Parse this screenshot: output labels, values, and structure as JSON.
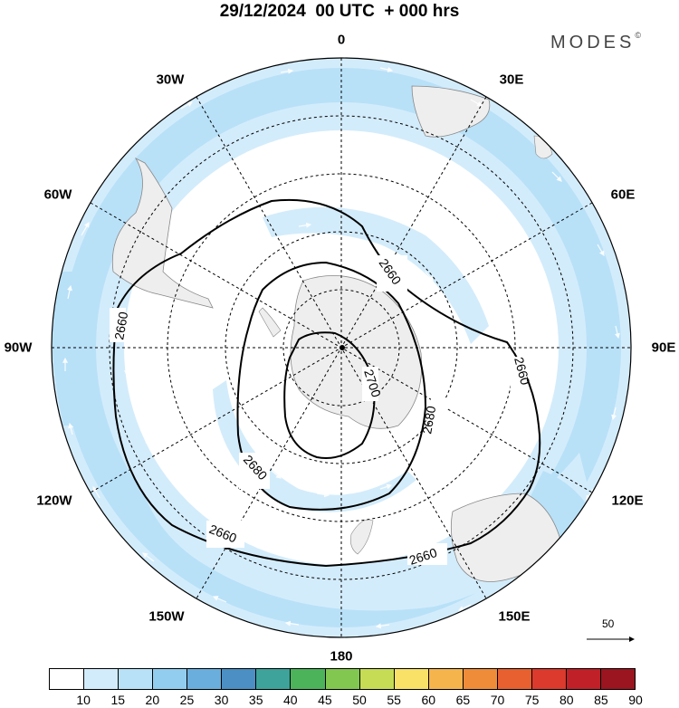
{
  "title": "29/12/2024  00 UTC  + 000 hrs",
  "brand": "MODES",
  "brand_mark": "©",
  "longitude_labels": {
    "n": "0",
    "e30": "30E",
    "e60": "60E",
    "e90": "90E",
    "e120": "120E",
    "e150": "150E",
    "s": "180",
    "w150": "150W",
    "w120": "120W",
    "w90": "90W",
    "w60": "60W",
    "w30": "30W"
  },
  "contour_labels": [
    "2660",
    "2660",
    "2660",
    "2660",
    "2660",
    "2680",
    "2680",
    "2700"
  ],
  "reference_vector_label": "50",
  "colorbar": {
    "colors": [
      "#ffffff",
      "#d3ecfb",
      "#b8e1f8",
      "#92cdf0",
      "#6aaedd",
      "#4b8fc4",
      "#3ea39a",
      "#4cb35b",
      "#82c750",
      "#c6dc55",
      "#f8e166",
      "#f6b44d",
      "#ef8c39",
      "#e8602f",
      "#db3a2c",
      "#c02028",
      "#9b1520"
    ],
    "ticks": [
      "10",
      "15",
      "20",
      "25",
      "30",
      "35",
      "40",
      "45",
      "50",
      "55",
      "60",
      "65",
      "70",
      "75",
      "80",
      "85",
      "90"
    ]
  }
}
